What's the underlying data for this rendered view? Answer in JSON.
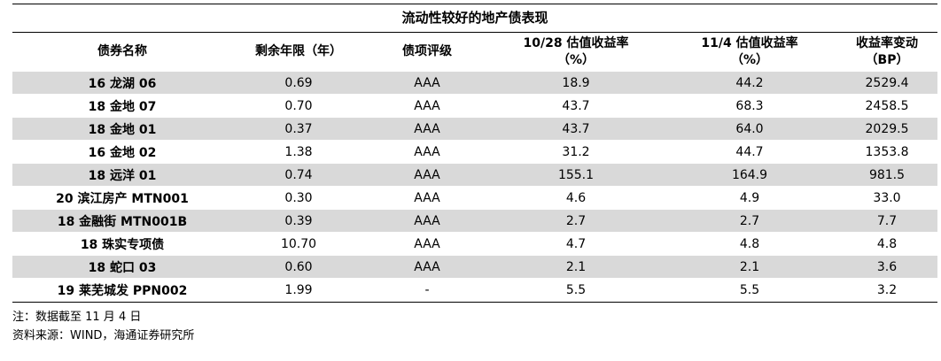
{
  "title": "流动性较好的地产债表现",
  "table": {
    "header": [
      "债券名称",
      "剩余年限（年）",
      "债项评级",
      "10/28 估值收益率\n（%）",
      "11/4 估值收益率\n（%）",
      "收益率变动\n（BP）"
    ],
    "rows": [
      [
        "16 龙湖 06",
        "0.69",
        "AAA",
        "18.9",
        "44.2",
        "2529.4"
      ],
      [
        "18 金地 07",
        "0.70",
        "AAA",
        "43.7",
        "68.3",
        "2458.5"
      ],
      [
        "18 金地 01",
        "0.37",
        "AAA",
        "43.7",
        "64.0",
        "2029.5"
      ],
      [
        "16 金地 02",
        "1.38",
        "AAA",
        "31.2",
        "44.7",
        "1353.8"
      ],
      [
        "18 远洋 01",
        "0.74",
        "AAA",
        "155.1",
        "164.9",
        "981.5"
      ],
      [
        "20 滨江房产 MTN001",
        "0.30",
        "AAA",
        "4.6",
        "4.9",
        "33.0"
      ],
      [
        "18 金融街 MTN001B",
        "0.39",
        "AAA",
        "2.7",
        "2.7",
        "7.7"
      ],
      [
        "18 珠实专项债",
        "10.70",
        "AAA",
        "4.7",
        "4.8",
        "4.8"
      ],
      [
        "18 蛇口 03",
        "0.60",
        "AAA",
        "2.1",
        "2.1",
        "3.6"
      ],
      [
        "19 莱芜城发 PPN002",
        "1.99",
        "-",
        "5.5",
        "5.5",
        "3.2"
      ]
    ]
  },
  "notes": [
    "注：数据截至 11 月 4 日",
    "资料来源：WIND，海通证券研究所"
  ]
}
